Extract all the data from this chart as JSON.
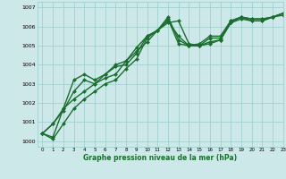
{
  "xlabel": "Graphe pression niveau de la mer (hPa)",
  "xlim": [
    -0.5,
    23
  ],
  "ylim": [
    999.7,
    1007.3
  ],
  "yticks": [
    1000,
    1001,
    1002,
    1003,
    1004,
    1005,
    1006,
    1007
  ],
  "xticks": [
    0,
    1,
    2,
    3,
    4,
    5,
    6,
    7,
    8,
    9,
    10,
    11,
    12,
    13,
    14,
    15,
    16,
    17,
    18,
    19,
    20,
    21,
    22,
    23
  ],
  "background_color": "#cce8e8",
  "grid_color": "#99cccc",
  "line_color": "#1a6e2e",
  "line_width": 1.0,
  "marker": "D",
  "marker_size": 2.0,
  "series": [
    [
      1000.4,
      1000.1,
      1000.9,
      1001.7,
      1002.2,
      1002.6,
      1003.0,
      1003.2,
      1003.8,
      1004.3,
      1005.4,
      1005.8,
      1006.3,
      1005.5,
      1005.0,
      1005.0,
      1005.1,
      1005.3,
      1006.2,
      1006.4,
      1006.3,
      1006.3,
      1006.5,
      1006.6
    ],
    [
      1000.4,
      1000.2,
      1001.7,
      1002.2,
      1002.6,
      1003.0,
      1003.5,
      1003.9,
      1004.0,
      1004.6,
      1005.5,
      1005.8,
      1006.4,
      1005.1,
      1005.0,
      1005.0,
      1005.2,
      1005.3,
      1006.2,
      1006.5,
      1006.3,
      1006.3,
      1006.5,
      1006.7
    ],
    [
      1000.4,
      1000.9,
      1001.6,
      1002.6,
      1003.2,
      1003.0,
      1003.3,
      1003.5,
      1004.2,
      1004.9,
      1005.5,
      1005.8,
      1006.2,
      1006.3,
      1005.1,
      1005.0,
      1005.4,
      1005.4,
      1006.3,
      1006.5,
      1006.4,
      1006.4,
      1006.5,
      1006.7
    ],
    [
      1000.4,
      1000.9,
      1001.7,
      1003.2,
      1003.5,
      1003.2,
      1003.5,
      1004.0,
      1004.2,
      1004.7,
      1005.2,
      1005.8,
      1006.5,
      1005.3,
      1005.0,
      1005.1,
      1005.5,
      1005.5,
      1006.3,
      1006.5,
      1006.4,
      1006.4,
      1006.5,
      1006.7
    ]
  ]
}
